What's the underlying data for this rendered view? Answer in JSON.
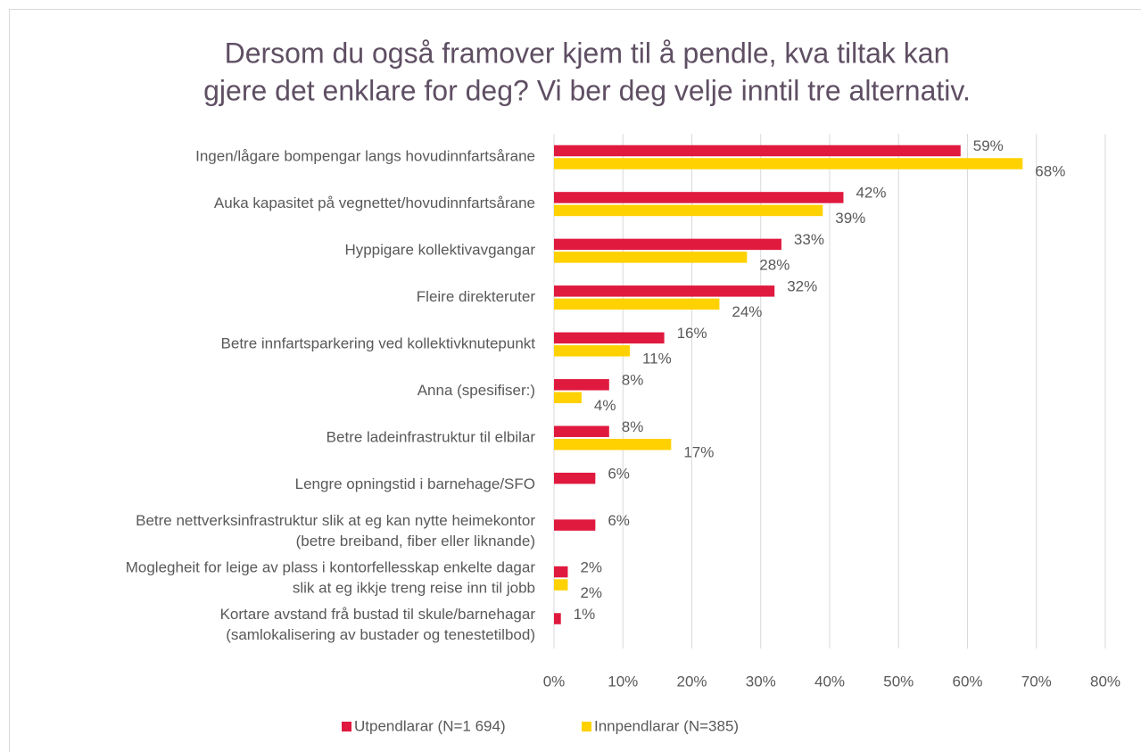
{
  "chart_data": {
    "type": "bar",
    "orientation": "horizontal",
    "title": [
      "Dersom du også framover kjem til å pendle, kva tiltak kan",
      "gjere det enklare for deg? Vi ber deg velje inntil tre alternativ."
    ],
    "categories": [
      [
        "Ingen/lågare bompengar langs hovudinnfartsårane"
      ],
      [
        "Auka kapasitet på vegnettet/hovudinnfartsårane"
      ],
      [
        "Hyppigare kollektivavgangar"
      ],
      [
        "Fleire direkteruter"
      ],
      [
        "Betre innfartsparkering ved kollektivknutepunkt"
      ],
      [
        "Anna (spesifiser:)"
      ],
      [
        "Betre ladeinfrastruktur til elbilar"
      ],
      [
        "Lengre opningstid i barnehage/SFO"
      ],
      [
        "Betre nettverksinfrastruktur slik at eg kan nytte heimekontor",
        "(betre breiband, fiber eller liknande)"
      ],
      [
        "Moglegheit for leige av plass i kontorfellesskap enkelte dagar",
        "slik at eg ikkje treng reise inn til jobb"
      ],
      [
        "Kortare avstand frå bustad til skule/barnehagar",
        "(samlokalisering av bustader og tenestetilbod)"
      ]
    ],
    "series": [
      {
        "name": "Utpendlarar (N=1 694)",
        "color": "#e0193f",
        "values": [
          59,
          42,
          33,
          32,
          16,
          8,
          8,
          6,
          6,
          2,
          1
        ],
        "value_labels": [
          "59%",
          "42%",
          "33%",
          "32%",
          "16%",
          "8%",
          "8%",
          "6%",
          "6%",
          "2%",
          "1%"
        ]
      },
      {
        "name": "Innpendlarar (N=385)",
        "color": "#ffd100",
        "values": [
          68,
          39,
          28,
          24,
          11,
          4,
          17,
          null,
          null,
          2,
          null
        ],
        "value_labels": [
          "68%",
          "39%",
          "28%",
          "24%",
          "11%",
          "4%",
          "17%",
          null,
          null,
          "2%",
          null
        ]
      }
    ],
    "xlim": [
      0,
      80
    ],
    "xticks": [
      {
        "value": 0,
        "label": "0%"
      },
      {
        "value": 10,
        "label": "10%"
      },
      {
        "value": 20,
        "label": "20%"
      },
      {
        "value": 30,
        "label": "30%"
      },
      {
        "value": 40,
        "label": "40%"
      },
      {
        "value": 50,
        "label": "50%"
      },
      {
        "value": 60,
        "label": "60%"
      },
      {
        "value": 70,
        "label": "70%"
      },
      {
        "value": 80,
        "label": "80%"
      }
    ],
    "grid": true,
    "legend": "bottom"
  }
}
